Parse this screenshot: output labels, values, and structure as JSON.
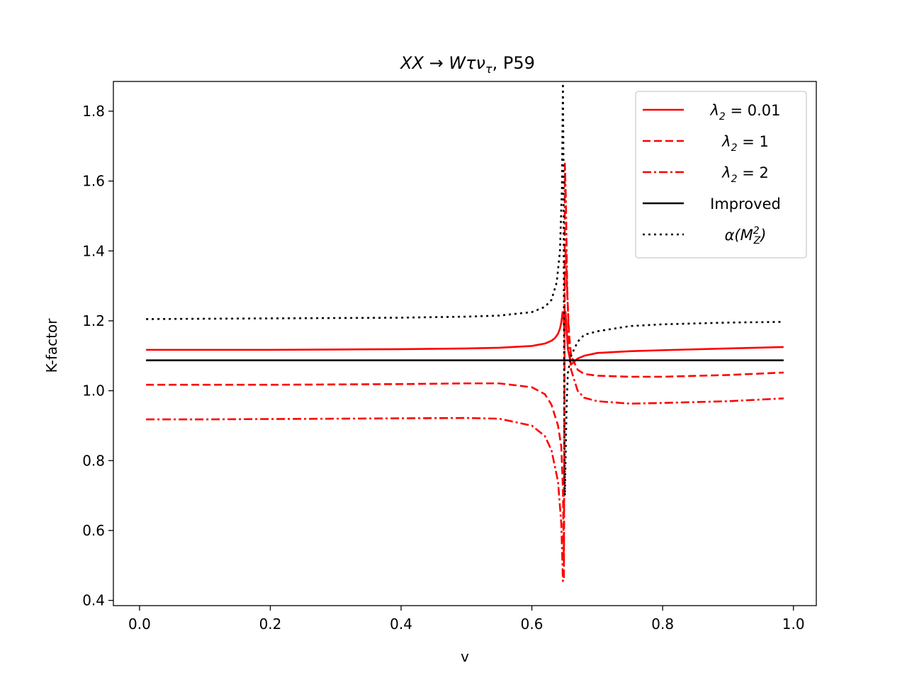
{
  "chart_data": {
    "type": "line",
    "title_parts": {
      "math": "XX → Wτν",
      "subscript": "τ",
      "suffix": ", P59"
    },
    "xlabel": "v",
    "ylabel": "K-factor",
    "xlim": [
      -0.04,
      1.035
    ],
    "ylim": [
      0.385,
      1.885
    ],
    "xticks": [
      0.0,
      0.2,
      0.4,
      0.6,
      0.8,
      1.0
    ],
    "xtick_labels": [
      "0.0",
      "0.2",
      "0.4",
      "0.6",
      "0.8",
      "1.0"
    ],
    "yticks": [
      0.4,
      0.6,
      0.8,
      1.0,
      1.2,
      1.4,
      1.6,
      1.8
    ],
    "ytick_labels": [
      "0.4",
      "0.6",
      "0.8",
      "1.0",
      "1.2",
      "1.4",
      "1.6",
      "1.8"
    ],
    "legend_position": "top-right",
    "series": [
      {
        "name": "λ2 = 0.01",
        "legend_main": "λ",
        "legend_sub": "2",
        "legend_rest": " = 0.01",
        "color": "#ff0000",
        "style": "solid",
        "x": [
          0.01,
          0.1,
          0.2,
          0.3,
          0.4,
          0.5,
          0.55,
          0.6,
          0.62,
          0.63,
          0.635,
          0.64,
          0.643,
          0.645,
          0.647,
          0.6485,
          0.6495,
          0.6505,
          0.6515,
          0.653,
          0.655,
          0.66,
          0.67,
          0.68,
          0.7,
          0.75,
          0.8,
          0.9,
          0.985
        ],
        "y": [
          1.117,
          1.117,
          1.117,
          1.118,
          1.119,
          1.121,
          1.123,
          1.128,
          1.135,
          1.143,
          1.15,
          1.163,
          1.178,
          1.195,
          1.225,
          1.218,
          1.17,
          1.21,
          1.225,
          1.18,
          1.12,
          1.075,
          1.092,
          1.1,
          1.108,
          1.113,
          1.116,
          1.121,
          1.125
        ]
      },
      {
        "name": "λ2 = 1",
        "legend_main": "λ",
        "legend_sub": "2",
        "legend_rest": " = 1",
        "color": "#ff0000",
        "style": "dashed",
        "x": [
          0.01,
          0.1,
          0.2,
          0.3,
          0.4,
          0.5,
          0.55,
          0.6,
          0.62,
          0.63,
          0.64,
          0.645,
          0.6475,
          0.649,
          0.6505,
          0.652,
          0.654,
          0.657,
          0.66,
          0.67,
          0.68,
          0.7,
          0.75,
          0.8,
          0.9,
          0.985
        ],
        "y": [
          1.017,
          1.017,
          1.017,
          1.018,
          1.019,
          1.021,
          1.021,
          1.01,
          0.99,
          0.96,
          0.9,
          0.84,
          0.72,
          0.5,
          1.38,
          1.4,
          1.28,
          1.16,
          1.1,
          1.06,
          1.048,
          1.043,
          1.04,
          1.04,
          1.045,
          1.052
        ]
      },
      {
        "name": "λ2 = 2",
        "legend_main": "λ",
        "legend_sub": "2",
        "legend_rest": " = 2",
        "color": "#ff0000",
        "style": "dashdot",
        "x": [
          0.01,
          0.1,
          0.2,
          0.3,
          0.4,
          0.5,
          0.55,
          0.6,
          0.62,
          0.63,
          0.64,
          0.645,
          0.6475,
          0.649,
          0.6505,
          0.652,
          0.654,
          0.657,
          0.66,
          0.67,
          0.68,
          0.7,
          0.75,
          0.8,
          0.9,
          0.985
        ],
        "y": [
          0.918,
          0.918,
          0.919,
          0.92,
          0.921,
          0.922,
          0.92,
          0.9,
          0.87,
          0.83,
          0.74,
          0.62,
          0.455,
          0.46,
          1.65,
          1.55,
          1.3,
          1.12,
          1.06,
          1.0,
          0.98,
          0.97,
          0.963,
          0.965,
          0.97,
          0.978
        ]
      },
      {
        "name": "Improved",
        "legend_main": "",
        "legend_sub": "",
        "legend_rest": "Improved",
        "color": "#000000",
        "style": "solid",
        "x": [
          0.01,
          0.985
        ],
        "y": [
          1.087,
          1.087
        ]
      },
      {
        "name": "α(M_Z^2)",
        "legend_main": "α(M",
        "legend_sub": "Z",
        "legend_sup": "2",
        "legend_rest": ")",
        "color": "#000000",
        "style": "dotted",
        "x": [
          0.01,
          0.1,
          0.2,
          0.3,
          0.4,
          0.5,
          0.55,
          0.6,
          0.62,
          0.63,
          0.638,
          0.643,
          0.646,
          0.6475,
          0.6485,
          0.6495,
          0.6505,
          0.6515,
          0.653,
          0.655,
          0.66,
          0.67,
          0.68,
          0.7,
          0.75,
          0.8,
          0.9,
          0.985
        ],
        "y": [
          1.205,
          1.206,
          1.207,
          1.208,
          1.209,
          1.212,
          1.215,
          1.225,
          1.24,
          1.26,
          1.31,
          1.4,
          1.58,
          1.88,
          1.6,
          0.95,
          0.7,
          0.8,
          0.95,
          1.05,
          1.1,
          1.14,
          1.16,
          1.17,
          1.185,
          1.19,
          1.195,
          1.197
        ]
      }
    ]
  }
}
